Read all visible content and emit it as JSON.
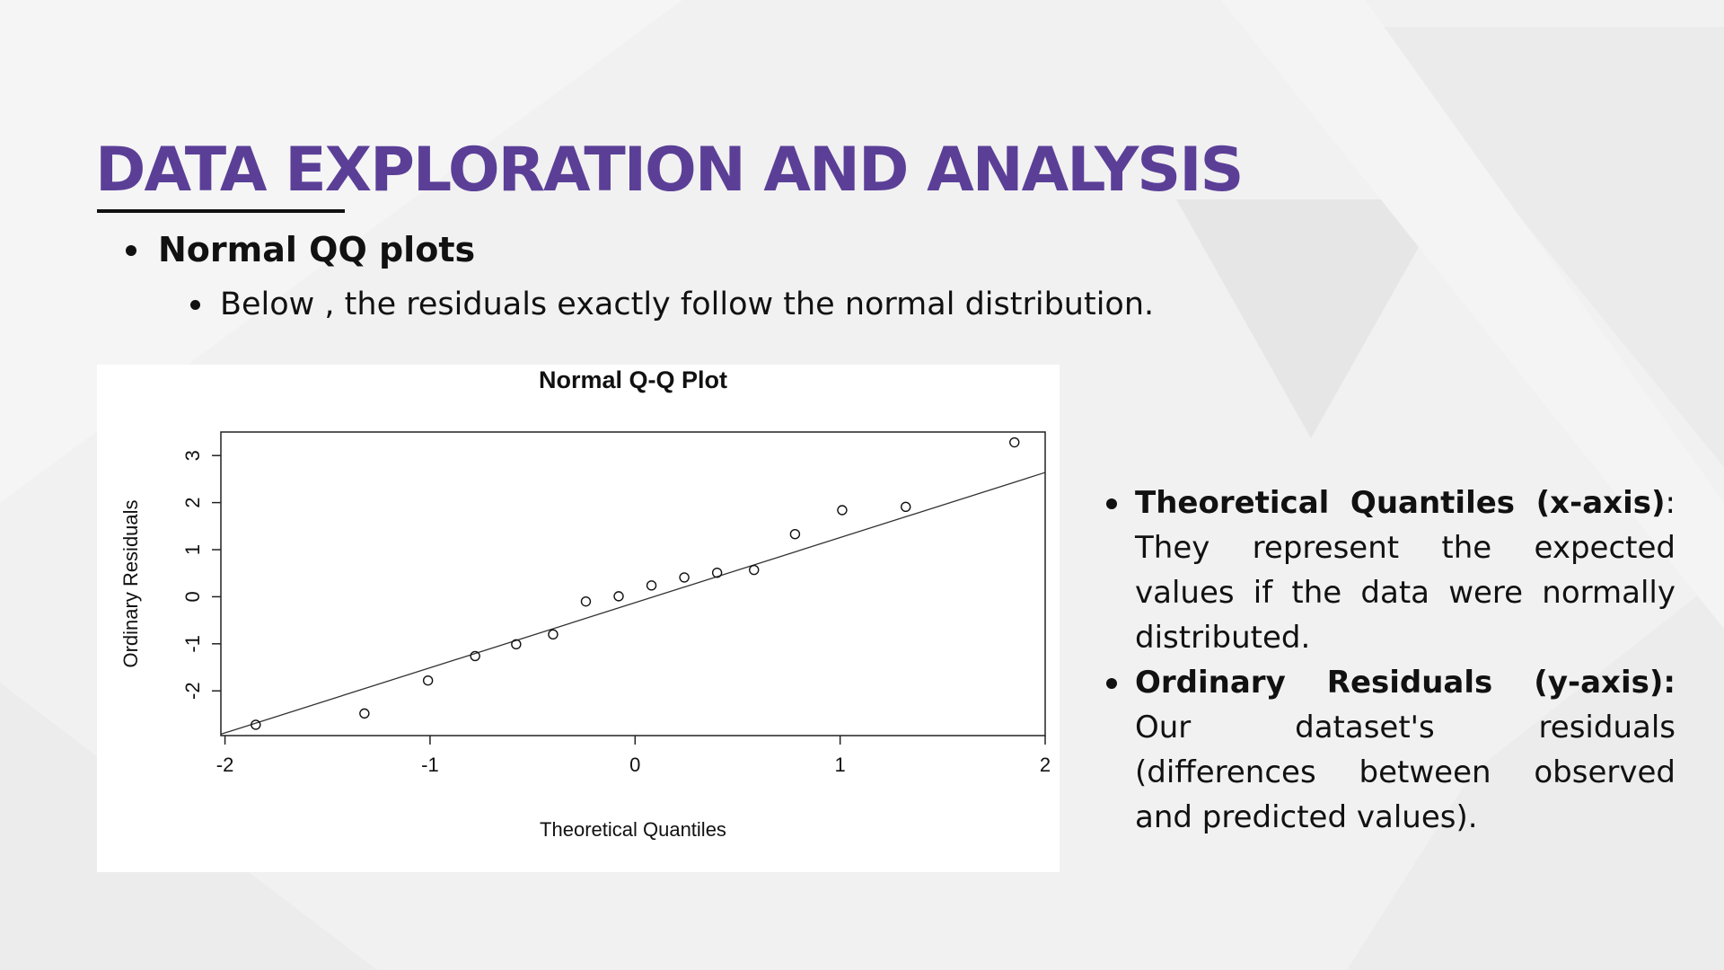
{
  "slide": {
    "title": "DATA EXPLORATION AND ANALYSIS",
    "bullet_main": "Normal QQ plots",
    "bullet_sub": "Below , the residuals exactly follow the normal distribution.",
    "explanations": [
      {
        "term": "Theoretical Quantiles (x-axis)",
        "sep": ":",
        "text": " They represent the expected values if the data were normally distributed."
      },
      {
        "term": "Ordinary Residuals (y-axis):",
        "sep": "",
        "text": " Our dataset's residuals (differences between observed and predicted values)."
      }
    ]
  },
  "colors": {
    "title": "#5b3f97",
    "text": "#111111",
    "background": "#f1f1f1"
  },
  "chart_data": {
    "type": "scatter",
    "title": "Normal Q-Q Plot",
    "xlabel": "Theoretical Quantiles",
    "ylabel": "Ordinary Residuals",
    "xlim": [
      -2.02,
      2.0
    ],
    "ylim": [
      -2.95,
      3.5
    ],
    "x_ticks": [
      -2,
      -1,
      0,
      1,
      2
    ],
    "y_ticks": [
      -2,
      -1,
      0,
      1,
      2,
      3
    ],
    "points": [
      {
        "x": -1.85,
        "y": -2.72
      },
      {
        "x": -1.32,
        "y": -2.48
      },
      {
        "x": -1.01,
        "y": -1.78
      },
      {
        "x": -0.78,
        "y": -1.26
      },
      {
        "x": -0.58,
        "y": -1.01
      },
      {
        "x": -0.4,
        "y": -0.8
      },
      {
        "x": -0.24,
        "y": -0.1
      },
      {
        "x": -0.08,
        "y": 0.01
      },
      {
        "x": 0.08,
        "y": 0.24
      },
      {
        "x": 0.24,
        "y": 0.41
      },
      {
        "x": 0.4,
        "y": 0.51
      },
      {
        "x": 0.58,
        "y": 0.57
      },
      {
        "x": 0.78,
        "y": 1.33
      },
      {
        "x": 1.01,
        "y": 1.84
      },
      {
        "x": 1.32,
        "y": 1.91
      },
      {
        "x": 1.85,
        "y": 3.28
      }
    ],
    "reference_line": {
      "x1": -2.02,
      "y1": -2.92,
      "x2": 2.0,
      "y2": 2.64
    },
    "grid": false,
    "legend": "none"
  }
}
